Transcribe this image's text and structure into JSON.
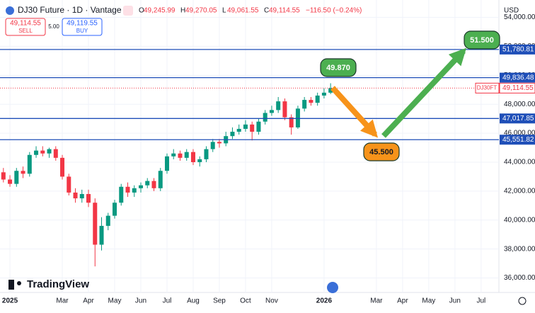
{
  "header": {
    "symbol": "DJ30 Future · 1D · Vantage",
    "ohlc": [
      {
        "label": "O",
        "value": "49,245.99"
      },
      {
        "label": "H",
        "value": "49,270.05"
      },
      {
        "label": "L",
        "value": "49,061.55"
      },
      {
        "label": "C",
        "value": "49,114.55"
      }
    ],
    "change": "−116.50 (−0.24%)",
    "sell": {
      "price": "49,114.55",
      "label": "SELL"
    },
    "spread": "5.00",
    "buy": {
      "price": "49,119.55",
      "label": "BUY"
    },
    "currency": "USD",
    "brand": "TradingView"
  },
  "chart_data": {
    "type": "candlestick",
    "x": [
      -0.25,
      0,
      0.25,
      0.5,
      0.75,
      1,
      1.25,
      1.5,
      1.75,
      2,
      2.25,
      2.5,
      2.75,
      3,
      3.25,
      3.5,
      3.75,
      4,
      4.25,
      4.5,
      4.75,
      5,
      5.25,
      5.5,
      5.75,
      6,
      6.25,
      6.5,
      6.75,
      7,
      7.25,
      7.5,
      7.75,
      8,
      8.25,
      8.5,
      8.75,
      9,
      9.25,
      9.5,
      9.75,
      10,
      10.25,
      10.5,
      10.75,
      11,
      11.25,
      11.5,
      11.75,
      12,
      12.25
    ],
    "open": [
      43300,
      42800,
      42500,
      43400,
      43200,
      44500,
      44800,
      44600,
      44900,
      44300,
      43000,
      41900,
      41500,
      41800,
      41200,
      38300,
      39600,
      40300,
      41200,
      42300,
      41900,
      42200,
      42400,
      42700,
      42200,
      43400,
      44400,
      44600,
      44300,
      44700,
      44000,
      44200,
      44900,
      45400,
      45300,
      45800,
      46100,
      46300,
      46600,
      46100,
      46800,
      47400,
      47600,
      48200,
      47100,
      46400,
      47700,
      48300,
      48100,
      48600,
      48800
    ],
    "high": [
      43600,
      43100,
      43600,
      43700,
      44700,
      45100,
      45100,
      45000,
      45100,
      44500,
      43200,
      42200,
      42100,
      42100,
      41500,
      40200,
      40500,
      41400,
      42500,
      42600,
      42400,
      42600,
      42900,
      42900,
      43600,
      44600,
      44900,
      44800,
      44900,
      44900,
      44400,
      45100,
      45600,
      45600,
      46100,
      46400,
      46600,
      46900,
      46800,
      47000,
      47600,
      47900,
      48500,
      48400,
      47300,
      47900,
      48500,
      48500,
      48800,
      49100,
      49450
    ],
    "low": [
      42600,
      42300,
      42300,
      42900,
      43000,
      44300,
      44400,
      44300,
      44100,
      42800,
      41700,
      41200,
      41200,
      40900,
      36800,
      37900,
      39300,
      40100,
      41000,
      41600,
      41600,
      41900,
      42200,
      42000,
      42000,
      43200,
      44200,
      44100,
      44100,
      43800,
      43700,
      44000,
      44700,
      45000,
      45100,
      45600,
      45900,
      46100,
      45500,
      45900,
      46600,
      47200,
      47400,
      46900,
      45900,
      46300,
      47500,
      47900,
      47900,
      48400,
      48700
    ],
    "close": [
      42800,
      42500,
      43400,
      43200,
      44500,
      44800,
      44600,
      44900,
      44300,
      43000,
      41900,
      41500,
      41800,
      41200,
      38300,
      39600,
      40300,
      41200,
      42300,
      41900,
      42200,
      42400,
      42700,
      42200,
      43400,
      44400,
      44600,
      44300,
      44700,
      44000,
      44200,
      44900,
      45400,
      45300,
      45800,
      46100,
      46300,
      46600,
      46100,
      46800,
      47400,
      47600,
      48200,
      47100,
      46400,
      47700,
      48300,
      48100,
      48600,
      48800,
      49114.55
    ],
    "up_color": "#089981",
    "down_color": "#f23645",
    "xlim": [
      -0.38,
      18.68
    ],
    "xticks": [
      {
        "value": 0,
        "label": "2025"
      },
      {
        "value": 2,
        "label": "Mar"
      },
      {
        "value": 3,
        "label": "Apr"
      },
      {
        "value": 4,
        "label": "May"
      },
      {
        "value": 5,
        "label": "Jun"
      },
      {
        "value": 6,
        "label": "Jul"
      },
      {
        "value": 7,
        "label": "Aug"
      },
      {
        "value": 8,
        "label": "Sep"
      },
      {
        "value": 9,
        "label": "Oct"
      },
      {
        "value": 10,
        "label": "Nov"
      },
      {
        "value": 12,
        "label": "2026"
      },
      {
        "value": 14,
        "label": "Mar"
      },
      {
        "value": 15,
        "label": "Apr"
      },
      {
        "value": 16,
        "label": "May"
      },
      {
        "value": 17,
        "label": "Jun"
      },
      {
        "value": 18,
        "label": "Jul"
      }
    ],
    "ylim": [
      35000,
      55200
    ],
    "yticks": [
      {
        "value": 36000,
        "label": "36,000.00"
      },
      {
        "value": 38000,
        "label": "38,000.00"
      },
      {
        "value": 40000,
        "label": "40,000.00"
      },
      {
        "value": 42000,
        "label": "42,000.00"
      },
      {
        "value": 44000,
        "label": "44,000.00"
      },
      {
        "value": 46000,
        "label": "46,000.00"
      },
      {
        "value": 48000,
        "label": "48,000.00"
      },
      {
        "value": 50000,
        "label": "50,000.00"
      },
      {
        "value": 52000,
        "label": "52,000.00"
      },
      {
        "value": 54000,
        "label": "54,000.00"
      }
    ],
    "grid": true,
    "hlines": [
      {
        "value": 51780.81,
        "label": "51,780.81"
      },
      {
        "value": 49836.48,
        "label": "49,836.48"
      },
      {
        "value": 47017.85,
        "label": "47,017.85"
      },
      {
        "value": 45551.82,
        "label": "45,551.82"
      }
    ],
    "hline_color": "#1f4fb8",
    "last_price": {
      "value": 49114.55,
      "label": "49,114.55",
      "tag": "DJ30FT",
      "color": "#f23645"
    },
    "annotations": [
      {
        "text": "49.870",
        "color": "#4caf50"
      },
      {
        "text": "51.500",
        "color": "#4caf50"
      },
      {
        "text": "45.500",
        "color": "#f7931a"
      }
    ]
  }
}
